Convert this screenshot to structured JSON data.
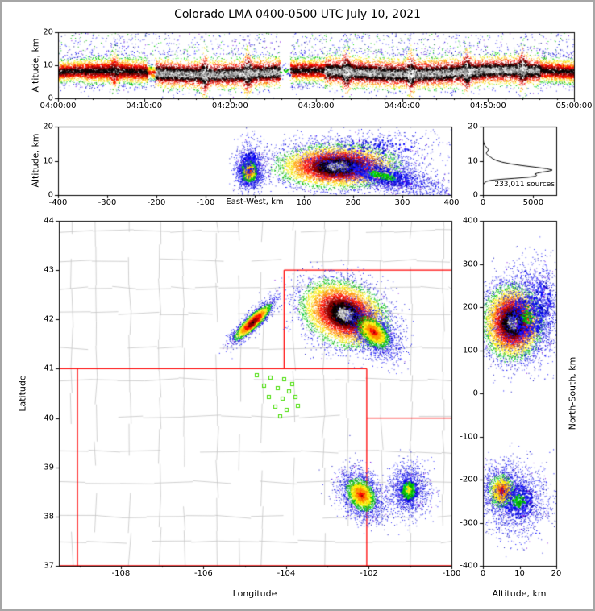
{
  "title": "Colorado LMA 0400-0500 UTC July 10, 2021",
  "chart_data": [
    {
      "id": "time_height",
      "type": "heatmap",
      "ylabel": "Altitude, km",
      "ylim": [
        0,
        20
      ],
      "y_ticks": [
        0,
        10,
        20
      ],
      "x_tick_minutes": [
        0,
        10,
        20,
        30,
        40,
        50,
        60
      ],
      "x_tick_labels": [
        "04:00:00",
        "04:10:00",
        "04:20:00",
        "04:30:00",
        "04:40:00",
        "04:50:00",
        "05:00:00"
      ],
      "time_range": [
        "04:00:00",
        "05:00:00"
      ],
      "segments": [
        {
          "t0": 0,
          "t1": 3,
          "center": 8.2,
          "sigma": 2.0,
          "intensity": 0.85,
          "core": "black"
        },
        {
          "t0": 3,
          "t1": 10.4,
          "center": 8.0,
          "sigma": 2.3,
          "intensity": 1.0,
          "core": "black"
        },
        {
          "t0": 10.4,
          "t1": 11.3,
          "center": 7.8,
          "sigma": 1.8,
          "intensity": 0.45,
          "core": "red"
        },
        {
          "t0": 11.3,
          "t1": 25.8,
          "center": 7.8,
          "sigma": 2.3,
          "intensity": 1.0,
          "core": "white"
        },
        {
          "t0": 25.8,
          "t1": 27.0,
          "center": 8.0,
          "sigma": 1.5,
          "intensity": 0.05,
          "core": "green"
        },
        {
          "t0": 27.0,
          "t1": 31,
          "center": 8.2,
          "sigma": 2.2,
          "intensity": 0.95,
          "core": "black"
        },
        {
          "t0": 31,
          "t1": 49,
          "center": 8.0,
          "sigma": 2.4,
          "intensity": 1.0,
          "core": "white"
        },
        {
          "t0": 49,
          "t1": 56,
          "center": 8.2,
          "sigma": 2.3,
          "intensity": 1.0,
          "core": "white"
        },
        {
          "t0": 56,
          "t1": 60,
          "center": 8.4,
          "sigma": 2.2,
          "intensity": 0.95,
          "core": "black"
        }
      ],
      "spikes": [
        6.5,
        17,
        22,
        33.5,
        41,
        47.5,
        54
      ],
      "high_speckle": {
        "n": 900,
        "alt_min": 13,
        "alt_max": 19.8
      }
    },
    {
      "id": "east_west",
      "type": "heatmap",
      "xlabel": "East-West, km",
      "xlim": [
        -400,
        400
      ],
      "x_ticks": [
        -400,
        -300,
        -200,
        -100,
        0,
        100,
        200,
        300,
        400
      ],
      "x_tick_label_skip": [
        0
      ],
      "ylabel": "Altitude, km",
      "ylim": [
        0,
        20
      ],
      "y_ticks": [
        0,
        10,
        20
      ],
      "blobs": [
        {
          "cx": -12,
          "cy": 7.0,
          "sx": 12,
          "sy": 2.4,
          "angle": 0,
          "n": 2200,
          "core": "red"
        },
        {
          "cx": -12,
          "cy": 10,
          "sx": 14,
          "sy": 3.8,
          "angle": 0,
          "n": 350,
          "core": "blue"
        },
        {
          "cx": 168,
          "cy": 8.5,
          "sx": 58,
          "sy": 3.0,
          "angle": 0,
          "n": 7500,
          "core": "white"
        },
        {
          "cx": 255,
          "cy": 6.0,
          "sx": 72,
          "sy": 2.5,
          "angle": -2,
          "n": 2500,
          "core": "green"
        },
        {
          "cx": 250,
          "cy": 14.5,
          "sx": 80,
          "sy": 2.4,
          "angle": 0,
          "n": 420,
          "core": "blue"
        }
      ]
    },
    {
      "id": "source_histogram",
      "type": "line",
      "annotation": "233,011 sources",
      "xlim": [
        0,
        7300
      ],
      "x_ticks": [
        0,
        5000
      ],
      "ylim": [
        0,
        20
      ],
      "y_ticks": [
        0,
        10,
        20
      ],
      "profile_alt_count": [
        [
          20,
          0
        ],
        [
          17,
          15
        ],
        [
          15.5,
          60
        ],
        [
          14.5,
          180
        ],
        [
          13.8,
          420
        ],
        [
          13.2,
          560
        ],
        [
          12.6,
          380
        ],
        [
          12.1,
          330
        ],
        [
          11.6,
          520
        ],
        [
          11.1,
          760
        ],
        [
          10.6,
          980
        ],
        [
          10.1,
          1350
        ],
        [
          9.6,
          1900
        ],
        [
          9.1,
          2750
        ],
        [
          8.6,
          3900
        ],
        [
          8.1,
          5300
        ],
        [
          7.7,
          6300
        ],
        [
          7.3,
          6900
        ],
        [
          7.0,
          6600
        ],
        [
          6.7,
          5900
        ],
        [
          6.4,
          5400
        ],
        [
          6.1,
          5150
        ],
        [
          5.8,
          5350
        ],
        [
          5.5,
          5250
        ],
        [
          5.2,
          4500
        ],
        [
          4.9,
          3200
        ],
        [
          4.6,
          1800
        ],
        [
          4.3,
          800
        ],
        [
          4.0,
          380
        ],
        [
          3.6,
          160
        ],
        [
          3.2,
          60
        ],
        [
          2.8,
          20
        ],
        [
          2.3,
          5
        ],
        [
          1.5,
          0
        ],
        [
          0,
          0
        ]
      ]
    },
    {
      "id": "plan_view",
      "type": "map-heatmap",
      "xlabel": "Longitude",
      "ylabel": "Latitude",
      "xlim": [
        -109.5,
        -100
      ],
      "ylim": [
        37,
        44
      ],
      "x_ticks": [
        -108,
        -106,
        -104,
        -102,
        -100
      ],
      "y_ticks": [
        37,
        38,
        39,
        40,
        41,
        42,
        43,
        44
      ],
      "state_border_color": "#ff0000",
      "county_color": "#c4c4c4",
      "station_color": "#44dd00",
      "state_borders": [
        [
          [
            -109.5,
            37
          ],
          [
            -100,
            37
          ]
        ],
        [
          [
            -109.05,
            37
          ],
          [
            -109.05,
            41
          ]
        ],
        [
          [
            -109.5,
            41
          ],
          [
            -102.05,
            41
          ]
        ],
        [
          [
            -102.05,
            37
          ],
          [
            -102.05,
            41
          ]
        ],
        [
          [
            -104.05,
            41
          ],
          [
            -104.05,
            43
          ]
        ],
        [
          [
            -104.05,
            43
          ],
          [
            -100,
            43
          ]
        ],
        [
          [
            -102.05,
            40
          ],
          [
            -100,
            40
          ]
        ]
      ],
      "stations": [
        [
          -104.72,
          40.88
        ],
        [
          -104.38,
          40.83
        ],
        [
          -104.06,
          40.8
        ],
        [
          -103.86,
          40.7
        ],
        [
          -104.55,
          40.66
        ],
        [
          -104.22,
          40.62
        ],
        [
          -103.95,
          40.55
        ],
        [
          -104.42,
          40.44
        ],
        [
          -104.1,
          40.4
        ],
        [
          -103.78,
          40.44
        ],
        [
          -104.28,
          40.24
        ],
        [
          -104.0,
          40.18
        ],
        [
          -103.72,
          40.26
        ],
        [
          -104.15,
          40.05
        ]
      ],
      "blobs": [
        {
          "cx": -104.82,
          "cy": 41.95,
          "sx": 0.3,
          "sy": 0.075,
          "angle": 38,
          "n": 2600,
          "core": "black"
        },
        {
          "cx": -102.6,
          "cy": 42.12,
          "sx": 0.5,
          "sy": 0.3,
          "angle": -15,
          "n": 8000,
          "core": "white"
        },
        {
          "cx": -101.9,
          "cy": 41.75,
          "sx": 0.35,
          "sy": 0.18,
          "angle": -35,
          "n": 2400,
          "core": "red"
        },
        {
          "cx": -102.2,
          "cy": 38.45,
          "sx": 0.3,
          "sy": 0.22,
          "angle": -40,
          "n": 2400,
          "core": "red"
        },
        {
          "cx": -101.05,
          "cy": 38.55,
          "sx": 0.24,
          "sy": 0.26,
          "angle": 0,
          "n": 1500,
          "core": "yellow"
        }
      ]
    },
    {
      "id": "north_south",
      "type": "heatmap",
      "xlabel": "Altitude, km",
      "xlim": [
        0,
        20
      ],
      "x_ticks": [
        0,
        10,
        20
      ],
      "ylabel": "North-South, km",
      "ylim": [
        -400,
        400
      ],
      "y_ticks": [
        400,
        300,
        200,
        100,
        0,
        -100,
        -200,
        -300,
        -400
      ],
      "blobs": [
        {
          "cx": 8,
          "cy": 165,
          "sx": 3.8,
          "sy": 40,
          "angle": 0,
          "n": 7500,
          "core": "white"
        },
        {
          "cx": 12,
          "cy": 180,
          "sx": 4.8,
          "sy": 55,
          "angle": 0,
          "n": 1800,
          "core": "green"
        },
        {
          "cx": 16,
          "cy": 220,
          "sx": 3.0,
          "sy": 45,
          "angle": 0,
          "n": 500,
          "core": "blue"
        },
        {
          "cx": 5,
          "cy": -225,
          "sx": 2.8,
          "sy": 30,
          "angle": 0,
          "n": 1500,
          "core": "red"
        },
        {
          "cx": 9.5,
          "cy": -250,
          "sx": 4.5,
          "sy": 42,
          "angle": 0,
          "n": 1500,
          "core": "green"
        }
      ]
    }
  ],
  "palette": {
    "core_white_note": "white-gray mottle",
    "black": [
      "#000000",
      "#0a0000",
      "#1c0404"
    ],
    "dark_red": [
      "#8c0000",
      "#a40000",
      "#7a0000"
    ],
    "red": [
      "#ff0000",
      "#ee1100",
      "#ff2200"
    ],
    "orange": [
      "#ff9100",
      "#ffa500",
      "#ff8400"
    ],
    "yellow": [
      "#ffee00",
      "#fffb30",
      "#e8d800"
    ],
    "green": [
      "#00bb00",
      "#00dd00",
      "#009900"
    ],
    "cyan_rare": "#00c8a8",
    "blue": [
      "#0000ff",
      "#2222dd",
      "#0000bb",
      "#3a3aff"
    ],
    "purple_rare": "#7700dd"
  }
}
